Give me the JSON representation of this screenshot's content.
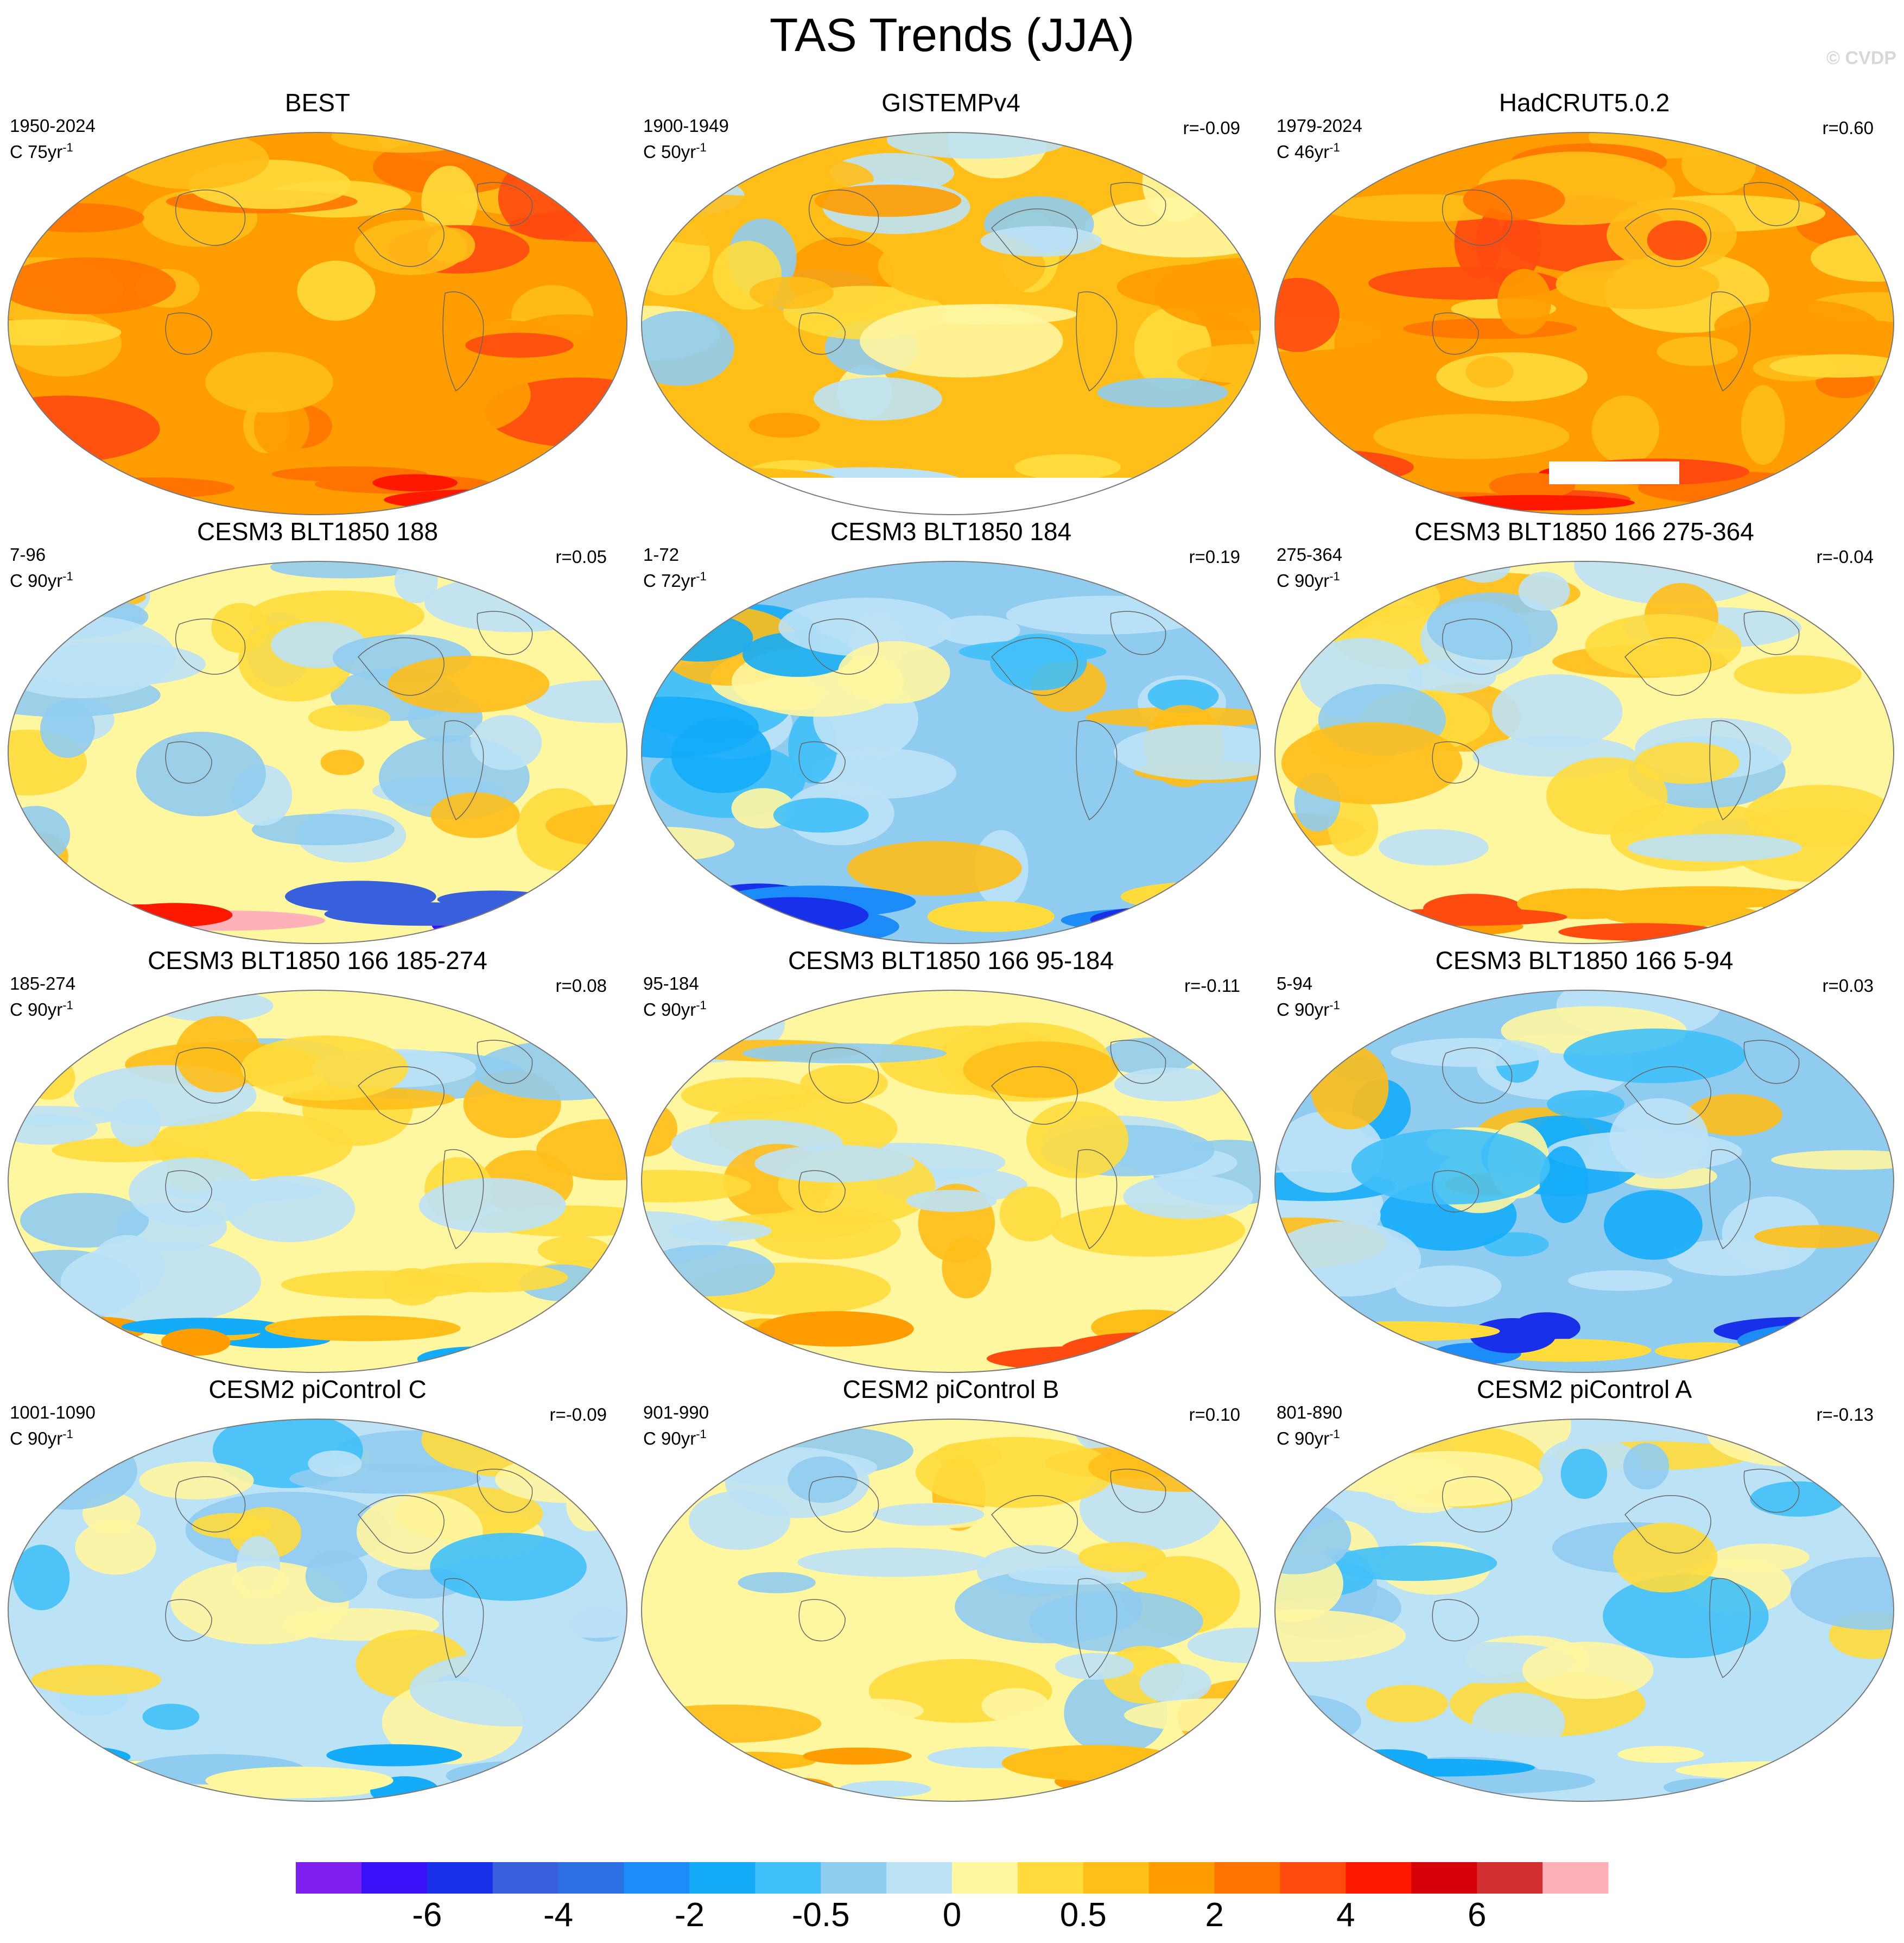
{
  "title": "TAS Trends (JJA)",
  "watermark": "© CVDP",
  "panels": [
    {
      "title": "BEST",
      "period": "1950-2024",
      "trend_units": "C 75yr",
      "units_exp": "-1",
      "r": "",
      "palette": "warm_strong",
      "missing": "none"
    },
    {
      "title": "GISTEMPv4",
      "period": "1900-1949",
      "trend_units": "C 50yr",
      "units_exp": "-1",
      "r": "r=-0.09",
      "palette": "warm_mixed",
      "missing": "antarctica"
    },
    {
      "title": "HadCRUT5.0.2",
      "period": "1979-2024",
      "trend_units": "C 46yr",
      "units_exp": "-1",
      "r": "r=0.60",
      "palette": "warm_strong",
      "missing": "partial"
    },
    {
      "title": "CESM3 BLT1850 188",
      "period": "7-96",
      "trend_units": "C 90yr",
      "units_exp": "-1",
      "r": "r=0.05",
      "palette": "mixed_extreme",
      "missing": "none"
    },
    {
      "title": "CESM3 BLT1850 184",
      "period": "1-72",
      "trend_units": "C 72yr",
      "units_exp": "-1",
      "r": "r=0.19",
      "palette": "cool",
      "missing": "none"
    },
    {
      "title": "CESM3 BLT1850 166 275-364",
      "period": "275-364",
      "trend_units": "C 90yr",
      "units_exp": "-1",
      "r": "r=-0.04",
      "palette": "mixed_warm_south",
      "missing": "none"
    },
    {
      "title": "CESM3 BLT1850 166 185-274",
      "period": "185-274",
      "trend_units": "C 90yr",
      "units_exp": "-1",
      "r": "r=0.08",
      "palette": "mixed_warm",
      "missing": "none"
    },
    {
      "title": "CESM3 BLT1850 166 95-184",
      "period": "95-184",
      "trend_units": "C 90yr",
      "units_exp": "-1",
      "r": "r=-0.11",
      "palette": "mixed_warm_south",
      "missing": "none"
    },
    {
      "title": "CESM3 BLT1850 166 5-94",
      "period": "5-94",
      "trend_units": "C 90yr",
      "units_exp": "-1",
      "r": "r=0.03",
      "palette": "cool",
      "missing": "none"
    },
    {
      "title": "CESM2 piControl C",
      "period": "1001-1090",
      "trend_units": "C 90yr",
      "units_exp": "-1",
      "r": "r=-0.09",
      "palette": "mixed_cool",
      "missing": "none"
    },
    {
      "title": "CESM2 piControl B",
      "period": "901-990",
      "trend_units": "C 90yr",
      "units_exp": "-1",
      "r": "r=0.10",
      "palette": "mixed",
      "missing": "none"
    },
    {
      "title": "CESM2 piControl A",
      "period": "801-890",
      "trend_units": "C 90yr",
      "units_exp": "-1",
      "r": "r=-0.13",
      "palette": "mixed_cool",
      "missing": "none"
    }
  ],
  "colorbar": {
    "colors": [
      "#8020f0",
      "#3a10f8",
      "#1830ea",
      "#3860dc",
      "#2d70e4",
      "#1c8cf8",
      "#14acf8",
      "#40c0f8",
      "#90ccf0",
      "#bce2f6",
      "#fff6a0",
      "#ffdc3c",
      "#ffbe18",
      "#ff9c00",
      "#ff7400",
      "#ff4a10",
      "#ff1800",
      "#d80008",
      "#d23030",
      "#ffb0b8"
    ],
    "labels": [
      {
        "text": "-6",
        "boundary": 2
      },
      {
        "text": "-4",
        "boundary": 4
      },
      {
        "text": "-2",
        "boundary": 6
      },
      {
        "text": "-0.5",
        "boundary": 8
      },
      {
        "text": "0",
        "boundary": 10
      },
      {
        "text": "0.5",
        "boundary": 12
      },
      {
        "text": "2",
        "boundary": 14
      },
      {
        "text": "4",
        "boundary": 16
      },
      {
        "text": "6",
        "boundary": 18
      }
    ]
  }
}
